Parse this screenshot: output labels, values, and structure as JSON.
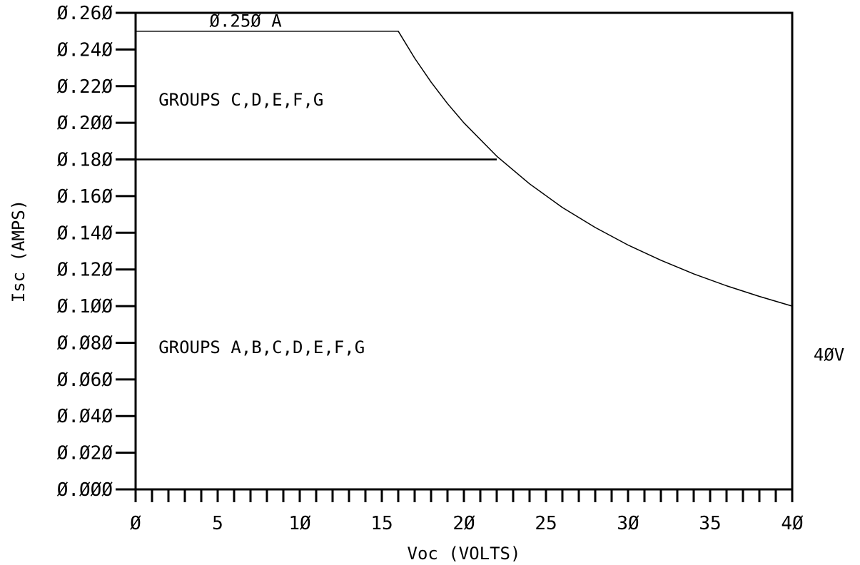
{
  "chart_data": {
    "type": "line",
    "xlabel": "Voc (VOLTS)",
    "ylabel": "Isc (AMPS)",
    "xlim": [
      0,
      40
    ],
    "ylim": [
      0,
      0.26
    ],
    "x_major_ticks": [
      0,
      5,
      10,
      15,
      20,
      25,
      30,
      35,
      40
    ],
    "x_tick_labels": [
      "Ø",
      "5",
      "1Ø",
      "15",
      "2Ø",
      "25",
      "3Ø",
      "35",
      "4Ø"
    ],
    "x_minor_step": 1,
    "y_ticks": [
      0,
      0.02,
      0.04,
      0.06,
      0.08,
      0.1,
      0.12,
      0.14,
      0.16,
      0.18,
      0.2,
      0.22,
      0.24,
      0.26
    ],
    "y_tick_labels": [
      "Ø.ØØØ",
      "Ø.Ø2Ø",
      "Ø.Ø4Ø",
      "Ø.Ø6Ø",
      "Ø.Ø8Ø",
      "Ø.1ØØ",
      "Ø.12Ø",
      "Ø.14Ø",
      "Ø.16Ø",
      "Ø.18Ø",
      "Ø.2ØØ",
      "Ø.22Ø",
      "Ø.24Ø",
      "Ø.26Ø"
    ],
    "grid": false,
    "series": [
      {
        "values_xy": [
          [
            0,
            0.25
          ],
          [
            16,
            0.25
          ],
          [
            17,
            0.2353
          ],
          [
            18,
            0.2222
          ],
          [
            19,
            0.2105
          ],
          [
            20,
            0.2
          ],
          [
            22,
            0.1818
          ],
          [
            24,
            0.1667
          ],
          [
            26,
            0.1538
          ],
          [
            28,
            0.1429
          ],
          [
            30,
            0.1333
          ],
          [
            32,
            0.125
          ],
          [
            34,
            0.1176
          ],
          [
            36,
            0.1111
          ],
          [
            38,
            0.1053
          ],
          [
            40,
            0.1
          ]
        ],
        "stroke": "#000000",
        "width": 1.5
      },
      {
        "values_xy": [
          [
            0,
            0.18
          ],
          [
            22,
            0.18
          ]
        ],
        "stroke": "#000000",
        "width": 2.5
      }
    ],
    "annotations": [
      {
        "text": "Ø.25Ø A",
        "x": 4.5,
        "y": 0.25
      },
      {
        "text": "GROUPS  C,D,E,F,G",
        "x": 1.4,
        "y": 0.207
      },
      {
        "text": "GROUPS  A,B,C,D,E,F,G",
        "x": 1.4,
        "y": 0.072
      },
      {
        "text": "4ØV",
        "x": 41.3,
        "y": 0.068
      }
    ]
  }
}
